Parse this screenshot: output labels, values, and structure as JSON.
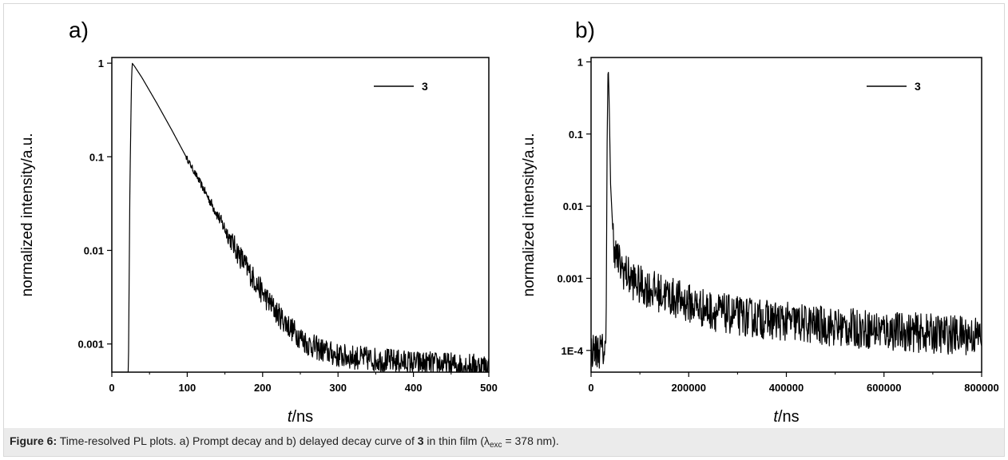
{
  "caption": {
    "prefix": "Figure 6:",
    "text1": " Time-resolved PL plots. a) Prompt decay and b) delayed decay curve of ",
    "compound": "3",
    "text2": " in thin film (λ",
    "sub": "exc",
    "text3": " = 378 nm)."
  },
  "chart_data": [
    {
      "type": "line",
      "panel_label": "a)",
      "xlabel_italic": "t",
      "xlabel_unit": "/ns",
      "ylabel": "normalized intensity/a.u.",
      "xlim": [
        0,
        500
      ],
      "ylim": [
        0.0005,
        1.15
      ],
      "yscale": "log",
      "xticks": [
        0,
        100,
        200,
        300,
        400,
        500
      ],
      "xtick_labels": [
        "0",
        "100",
        "200",
        "300",
        "400",
        "500"
      ],
      "yticks": [
        1,
        0.1,
        0.01,
        0.001
      ],
      "ytick_labels": [
        "1",
        "0.1",
        "0.01",
        "0.001"
      ],
      "legend": {
        "label": "3",
        "placement": "top-right"
      },
      "series": [
        {
          "name": "3",
          "color": "#000000",
          "x": [
            22,
            24,
            26,
            27,
            30,
            40,
            60,
            80,
            100,
            120,
            140,
            160,
            180,
            200,
            220,
            240,
            260,
            280,
            300,
            350,
            400,
            450,
            500
          ],
          "y": [
            0.0005,
            0.05,
            0.6,
            1.0,
            0.93,
            0.7,
            0.37,
            0.19,
            0.095,
            0.048,
            0.024,
            0.012,
            0.0063,
            0.0035,
            0.0021,
            0.0014,
            0.001,
            0.00085,
            0.00075,
            0.00068,
            0.00063,
            0.0006,
            0.00058
          ]
        }
      ]
    },
    {
      "type": "line",
      "panel_label": "b)",
      "xlabel_italic": "t",
      "xlabel_unit": "/ns",
      "ylabel": "normalized intensity/a.u.",
      "xlim": [
        0,
        800000
      ],
      "ylim": [
        5e-05,
        1.15
      ],
      "yscale": "log",
      "xticks": [
        0,
        200000,
        400000,
        600000,
        800000
      ],
      "xtick_labels": [
        "0",
        "200000",
        "400000",
        "600000",
        "800000"
      ],
      "yticks": [
        1,
        0.1,
        0.01,
        0.001,
        0.0001
      ],
      "ytick_labels": [
        "1",
        "0.1",
        "0.01",
        "0.001",
        "1E-4"
      ],
      "legend": {
        "label": "3",
        "placement": "top-right"
      },
      "series": [
        {
          "name": "3",
          "color": "#000000",
          "x": [
            0,
            30000,
            31000,
            33000,
            35000,
            37000,
            40000,
            45000,
            50000,
            60000,
            80000,
            100000,
            150000,
            200000,
            250000,
            300000,
            400000,
            500000,
            600000,
            700000,
            800000
          ],
          "y": [
            0.0001,
            0.0001,
            0.0003,
            0.1,
            1.0,
            0.3,
            0.02,
            0.004,
            0.0022,
            0.0015,
            0.001,
            0.0008,
            0.0006,
            0.00045,
            0.00035,
            0.0003,
            0.00025,
            0.00021,
            0.00019,
            0.00017,
            0.00016
          ]
        }
      ]
    }
  ]
}
